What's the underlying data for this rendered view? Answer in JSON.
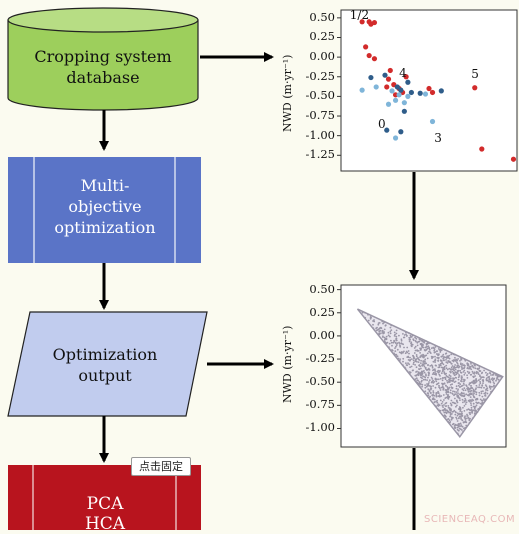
{
  "flow": {
    "database_label": "Cropping system database",
    "multi_label": "Multi-objective optimization",
    "output_label": "Optimization output",
    "pca_label": "PCA",
    "hca_label": "HCA",
    "tooltip": "点击固定"
  },
  "watermark": "SCIENCEAQ.COM",
  "colors": {
    "database_fill": "#9dcf5c",
    "multi_fill": "#5a74c7",
    "output_fill": "#c1ccee",
    "pca_fill": "#b8141e",
    "red_points": "#d22b2b",
    "dark_blue_points": "#2f5d8a",
    "light_blue_points": "#7fb5d9",
    "cloud_points": "#9a96a6"
  },
  "chart_data": [
    {
      "type": "scatter",
      "ylabel": "NWD (m·yr⁻¹)",
      "ylim": [
        -1.45,
        0.6
      ],
      "yticks": [
        0.5,
        0.25,
        0.0,
        -0.25,
        -0.5,
        -0.75,
        -1.0,
        -1.25
      ],
      "xlabel": "",
      "annotations": [
        "1/2",
        "4",
        "5",
        "0",
        "3"
      ],
      "series": [
        {
          "color": "red",
          "points": [
            [
              0.12,
              0.45
            ],
            [
              0.16,
              0.45
            ],
            [
              0.19,
              0.44
            ],
            [
              0.17,
              0.42
            ],
            [
              0.14,
              0.13
            ],
            [
              0.16,
              0.02
            ],
            [
              0.19,
              -0.02
            ],
            [
              0.28,
              -0.17
            ],
            [
              0.27,
              -0.28
            ],
            [
              0.3,
              -0.35
            ],
            [
              0.26,
              -0.38
            ],
            [
              0.33,
              -0.4
            ],
            [
              0.35,
              -0.45
            ],
            [
              0.31,
              -0.48
            ],
            [
              0.37,
              -0.25
            ],
            [
              0.5,
              -0.4
            ],
            [
              0.52,
              -0.45
            ],
            [
              0.76,
              -0.39
            ],
            [
              0.8,
              -1.17
            ],
            [
              0.98,
              -1.3
            ]
          ]
        },
        {
          "color": "dark blue",
          "points": [
            [
              0.17,
              -0.26
            ],
            [
              0.25,
              -0.23
            ],
            [
              0.38,
              -0.32
            ],
            [
              0.32,
              -0.38
            ],
            [
              0.34,
              -0.42
            ],
            [
              0.4,
              -0.45
            ],
            [
              0.45,
              -0.46
            ],
            [
              0.57,
              -0.43
            ],
            [
              0.36,
              -0.69
            ],
            [
              0.26,
              -0.93
            ],
            [
              0.34,
              -0.95
            ]
          ]
        },
        {
          "color": "light blue",
          "points": [
            [
              0.12,
              -0.42
            ],
            [
              0.2,
              -0.38
            ],
            [
              0.29,
              -0.43
            ],
            [
              0.33,
              -0.48
            ],
            [
              0.38,
              -0.5
            ],
            [
              0.31,
              -0.55
            ],
            [
              0.36,
              -0.58
            ],
            [
              0.27,
              -0.6
            ],
            [
              0.48,
              -0.47
            ],
            [
              0.52,
              -0.82
            ],
            [
              0.31,
              -1.03
            ]
          ]
        }
      ]
    },
    {
      "type": "scatter",
      "ylabel": "NWD (m·yr⁻¹)",
      "ylim": [
        -1.2,
        0.55
      ],
      "yticks": [
        0.5,
        0.25,
        0.0,
        -0.25,
        -0.5,
        -0.75,
        -1.0
      ],
      "xlabel": "",
      "series": [
        {
          "name": "",
          "region": "triangular cloud of optimized solutions",
          "vertices": [
            [
              0.1,
              0.29
            ],
            [
              0.98,
              -0.44
            ],
            [
              0.72,
              -1.09
            ]
          ]
        }
      ]
    }
  ]
}
